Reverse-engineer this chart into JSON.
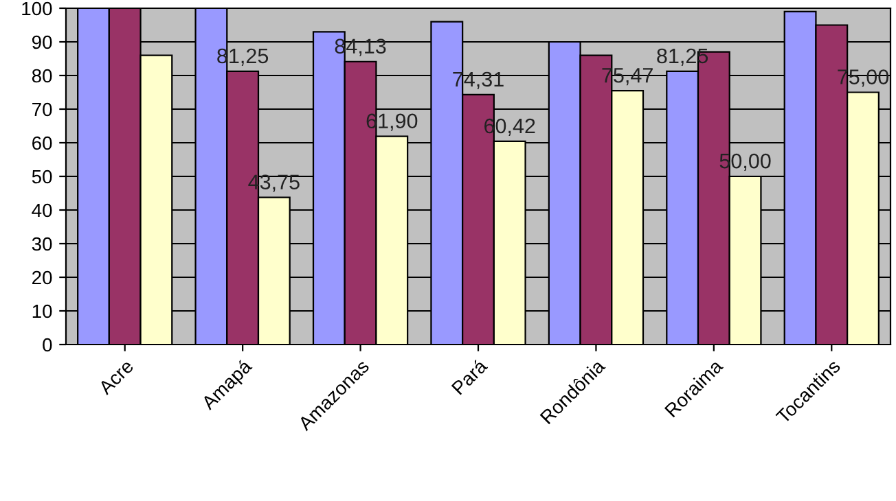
{
  "chart_data": {
    "type": "bar",
    "categories": [
      "Acre",
      "Amapá",
      "Amazonas",
      "Pará",
      "Rondônia",
      "Roraima",
      "Tocantins"
    ],
    "series": [
      {
        "color": "#9999ff",
        "values": [
          100,
          100,
          93,
          96,
          90,
          81.25,
          99
        ],
        "value_labels": [
          null,
          null,
          null,
          null,
          null,
          "81,25",
          null
        ]
      },
      {
        "color": "#993366",
        "values": [
          100,
          81.25,
          84.13,
          74.31,
          86,
          87,
          95
        ],
        "value_labels": [
          null,
          "81,25",
          "84,13",
          "74,31",
          null,
          null,
          null
        ]
      },
      {
        "color": "#ffffcc",
        "values": [
          86,
          43.75,
          61.9,
          60.42,
          75.47,
          50.0,
          75.0
        ],
        "value_labels": [
          null,
          "43,75",
          "61,90",
          "60,42",
          "75,47",
          "50,00",
          "75,00"
        ]
      }
    ],
    "ylim": [
      0,
      100
    ],
    "yticks": [
      0,
      10,
      20,
      30,
      40,
      50,
      60,
      70,
      80,
      90,
      100
    ],
    "grid": "y",
    "legend": false
  }
}
